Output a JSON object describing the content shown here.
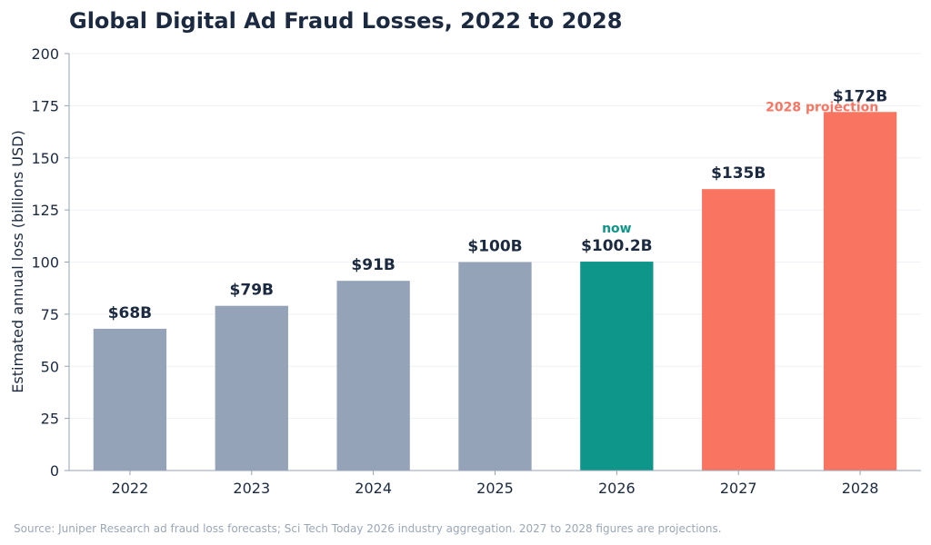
{
  "chart_data": {
    "type": "bar",
    "title": "Global Digital Ad Fraud Losses, 2022 to 2028",
    "xlabel": "",
    "ylabel": "Estimated annual loss (billions USD)",
    "categories": [
      "2022",
      "2023",
      "2024",
      "2025",
      "2026",
      "2027",
      "2028"
    ],
    "values": [
      68,
      79,
      91,
      100,
      100.2,
      135,
      172
    ],
    "data_labels": [
      "$68B",
      "$79B",
      "$91B",
      "$100B",
      "$100.2B",
      "$135B",
      "$172B"
    ],
    "ylim": [
      0,
      200
    ],
    "yticks": [
      0,
      25,
      50,
      75,
      100,
      125,
      150,
      175,
      200
    ],
    "grid": "horizontal",
    "bar_kinds": [
      "historical",
      "historical",
      "historical",
      "historical",
      "current",
      "projection",
      "projection"
    ],
    "colors": {
      "historical": "#94a3b8",
      "current": "#0f968a",
      "projection": "#fa7462",
      "text": "#1b2a41",
      "axis": "#94a3b8",
      "grid": "#eef1f5",
      "source": "#9aa7b8"
    },
    "annotations": [
      {
        "text": "now",
        "category": "2026",
        "color": "#0f968a"
      },
      {
        "text": "2028 projection",
        "category": "2028",
        "color": "#fa7462"
      }
    ],
    "source": "Source: Juniper Research ad fraud loss forecasts; Sci Tech Today 2026 industry aggregation. 2027 to 2028 figures are projections."
  }
}
